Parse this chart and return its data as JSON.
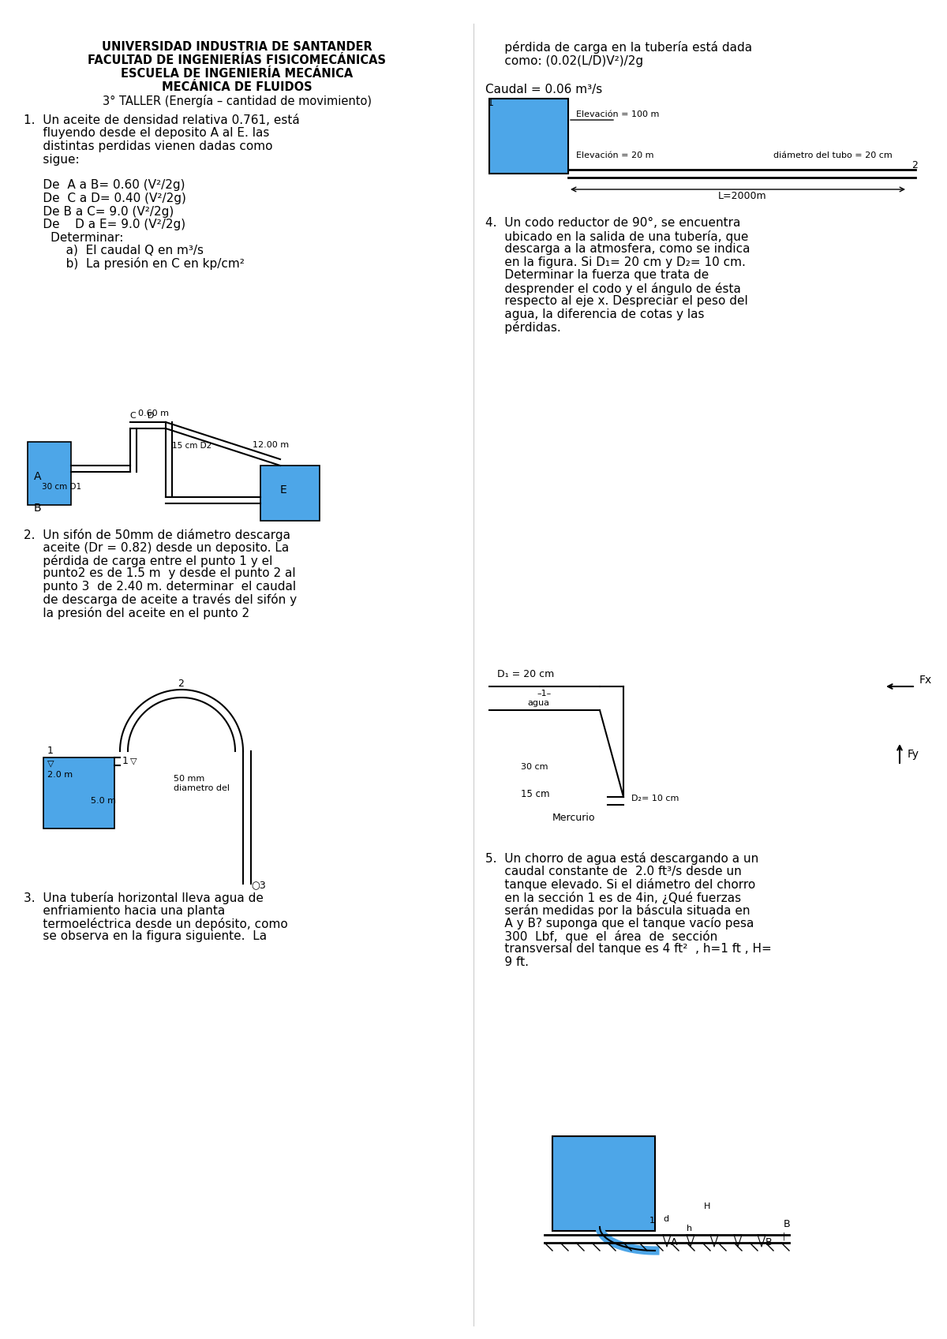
{
  "bg_color": "#ffffff",
  "header_lines": [
    "UNIVERSIDAD INDUSTRIA DE SANTANDER",
    "FACULTAD DE INGENIERÍAS FISICOMECÁNICAS",
    "ESCUELA DE INGENIERÍA MECÁNICA",
    "MECÁNICA DE FLUIDOS",
    "3° TALLER (Energía – cantidad de movimiento)"
  ],
  "q1_text": [
    "1.  Un aceite de densidad relativa 0.761, está",
    "     fluyendo desde el deposito A al E. las",
    "     distintas perdidas vienen dadas como",
    "     sigue:",
    "",
    "     De  A a B= 0.60 (V²/2g)",
    "     De  C a D= 0.40 (V²/2g)",
    "     De B a C= 9.0 (V²/2g)",
    "     De    D a E= 9.0 (V²/2g)",
    "       Determinar:",
    "           a)  El caudal Q en m³/s",
    "           b)  La presión en C en kp/cm²"
  ],
  "q2_text": [
    "2.  Un sifón de 50mm de diámetro descarga",
    "     aceite (Dr = 0.82) desde un deposito. La",
    "     pérdida de carga entre el punto 1 y el",
    "     punto2 es de 1.5 m  y desde el punto 2 al",
    "     punto 3  de 2.40 m. determinar  el caudal",
    "     de descarga de aceite a través del sifón y",
    "     la presión del aceite en el punto 2"
  ],
  "q3_text": [
    "3.  Una tubería horizontal lleva agua de",
    "     enfriamiento hacia una planta",
    "     termoeléctrica desde un depósito, como",
    "     se observa en la figura siguiente.  La"
  ],
  "q3_cont_text": [
    "     pérdida de carga en la tubería está dada",
    "     como: (0.02(L/D)V²)/2g",
    "",
    "Caudal = 0.06 m³/s"
  ],
  "q4_text": [
    "4.  Un codo reductor de 90°, se encuentra",
    "     ubicado en la salida de una tubería, que",
    "     descarga a la atmosfera, como se indica",
    "     en la figura. Si D₁= 20 cm y D₂= 10 cm.",
    "     Determinar la fuerza que trata de",
    "     desprender el codo y el ángulo de ésta",
    "     respecto al eje x. Despreciar el peso del",
    "     agua, la diferencia de cotas y las",
    "     pérdidas."
  ],
  "q5_text": [
    "5.  Un chorro de agua está descargando a un",
    "     caudal constante de  2.0 ft³/s desde un",
    "     tanque elevado. Si el diámetro del chorro",
    "     en la sección 1 es de 4in, ¿Qué fuerzas",
    "     serán medidas por la báscula situada en",
    "     A y B? suponga que el tanque vacío pesa",
    "     300  Lbf,  que  el  área  de  sección",
    "     transversal del tanque es 4 ft²  , h=1 ft , H=",
    "     9 ft."
  ]
}
